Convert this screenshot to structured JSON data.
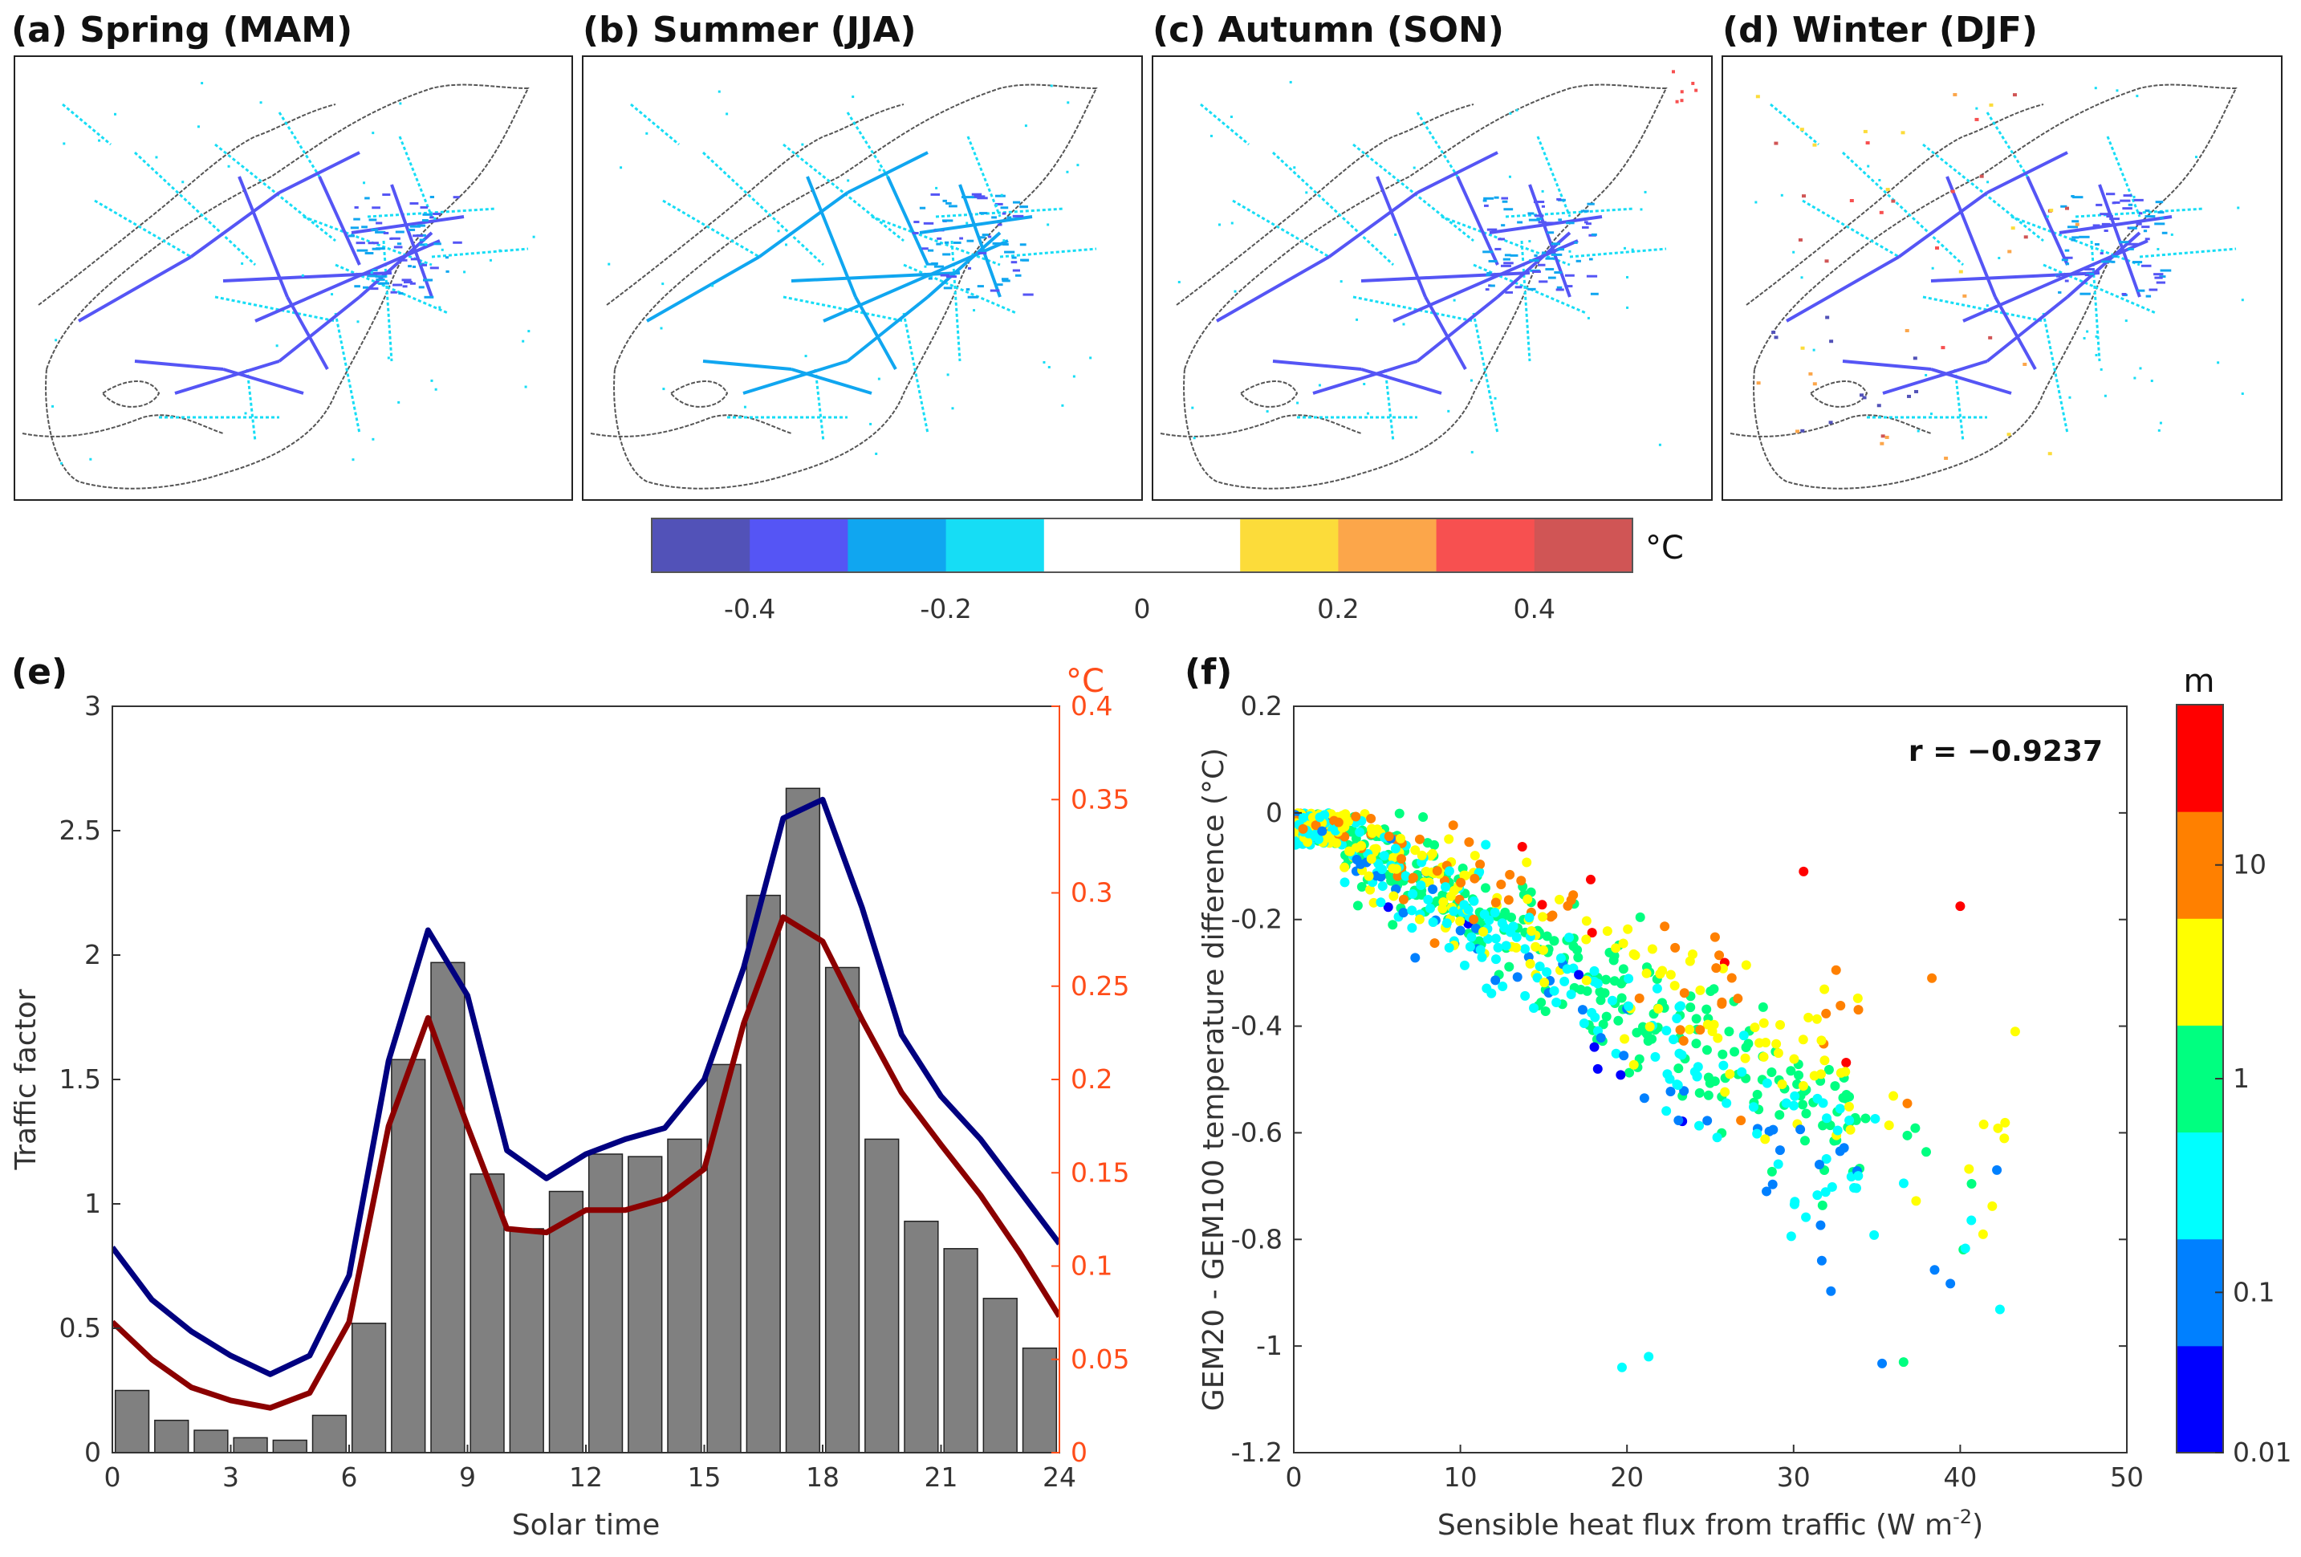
{
  "maps": {
    "panels": [
      {
        "label": "(a) Spring (MAM)"
      },
      {
        "label": "(b) Summer (JJA)"
      },
      {
        "label": "(c) Autumn (SON)"
      },
      {
        "label": "(d) Winter (DJF)"
      }
    ],
    "colorbar": {
      "unit": "°C",
      "bins": [
        {
          "from": -0.5,
          "to": -0.4,
          "color": "#5252b8"
        },
        {
          "from": -0.4,
          "to": -0.3,
          "color": "#5555f5"
        },
        {
          "from": -0.3,
          "to": -0.2,
          "color": "#10a6f0"
        },
        {
          "from": -0.2,
          "to": -0.1,
          "color": "#16ddf5"
        },
        {
          "from": -0.1,
          "to": 0.1,
          "color": "#ffffff"
        },
        {
          "from": 0.1,
          "to": 0.2,
          "color": "#fcdc3a"
        },
        {
          "from": 0.2,
          "to": 0.3,
          "color": "#fca64a"
        },
        {
          "from": 0.3,
          "to": 0.4,
          "color": "#f75050"
        },
        {
          "from": 0.4,
          "to": 0.5,
          "color": "#d05555"
        }
      ],
      "ticks": [
        "-0.4",
        "-0.2",
        "0",
        "0.2",
        "0.4"
      ],
      "tick_values": [
        -0.4,
        -0.2,
        0,
        0.2,
        0.4
      ]
    }
  },
  "chart_data": [
    {
      "id": "e",
      "type": "bar+line",
      "panel_label": "(e)",
      "xlabel": "Solar time",
      "ylabel": "Traffic factor",
      "ylabel_right": "°C",
      "xlim": [
        0,
        24
      ],
      "ylim": [
        0,
        3
      ],
      "ylim_right": [
        0,
        0.4
      ],
      "xticks": [
        "0",
        "3",
        "6",
        "9",
        "12",
        "15",
        "18",
        "21",
        "24"
      ],
      "xtick_values": [
        0,
        3,
        6,
        9,
        12,
        15,
        18,
        21,
        24
      ],
      "yticks": [
        "0",
        "0.5",
        "1",
        "1.5",
        "2",
        "2.5",
        "3"
      ],
      "ytick_values": [
        0,
        0.5,
        1,
        1.5,
        2,
        2.5,
        3
      ],
      "yticks_right": [
        "0",
        "0.05",
        "0.1",
        "0.15",
        "0.2",
        "0.25",
        "0.3",
        "0.35",
        "0.4"
      ],
      "ytick_values_right": [
        0,
        0.05,
        0.1,
        0.15,
        0.2,
        0.25,
        0.3,
        0.35,
        0.4
      ],
      "bars": {
        "hours": [
          0,
          1,
          2,
          3,
          4,
          5,
          6,
          7,
          8,
          9,
          10,
          11,
          12,
          13,
          14,
          15,
          16,
          17,
          18,
          19,
          20,
          21,
          22,
          23
        ],
        "values": [
          0.25,
          0.13,
          0.09,
          0.06,
          0.05,
          0.15,
          0.52,
          1.58,
          1.97,
          1.12,
          0.9,
          1.05,
          1.2,
          1.19,
          1.26,
          1.56,
          2.24,
          2.67,
          1.95,
          1.26,
          0.93,
          0.82,
          0.62,
          0.42
        ],
        "color": "#808080"
      },
      "series": [
        {
          "name": "blue line",
          "color": "#000080",
          "axis": "right",
          "x": [
            0,
            1,
            2,
            3,
            4,
            5,
            6,
            7,
            8,
            9,
            10,
            11,
            12,
            13,
            14,
            15,
            16,
            17,
            18,
            19,
            20,
            21,
            22,
            23,
            24
          ],
          "values": [
            0.11,
            0.082,
            0.065,
            0.052,
            0.042,
            0.052,
            0.095,
            0.21,
            0.28,
            0.245,
            0.162,
            0.147,
            0.16,
            0.168,
            0.174,
            0.2,
            0.26,
            0.34,
            0.35,
            0.292,
            0.224,
            0.191,
            0.168,
            0.14,
            0.112
          ]
        },
        {
          "name": "red line",
          "color": "#8b0000",
          "axis": "right",
          "x": [
            0,
            1,
            2,
            3,
            4,
            5,
            6,
            7,
            8,
            9,
            10,
            11,
            12,
            13,
            14,
            15,
            16,
            17,
            18,
            19,
            20,
            21,
            22,
            23,
            24
          ],
          "values": [
            0.07,
            0.05,
            0.035,
            0.028,
            0.024,
            0.032,
            0.07,
            0.175,
            0.233,
            0.175,
            0.12,
            0.118,
            0.13,
            0.13,
            0.136,
            0.152,
            0.23,
            0.287,
            0.274,
            0.232,
            0.193,
            0.165,
            0.138,
            0.107,
            0.073
          ]
        }
      ]
    },
    {
      "id": "f",
      "type": "scatter",
      "panel_label": "(f)",
      "xlabel": "Sensible heat flux from traffic (W m",
      "xlabel_sup": "-2",
      "xlabel_end": ")",
      "ylabel": "GEM20 - GEM100 temperature difference (°C)",
      "annotation": "r = −0.9237",
      "xlim": [
        0,
        50
      ],
      "ylim": [
        -1.2,
        0.2
      ],
      "xticks": [
        "0",
        "10",
        "20",
        "30",
        "40",
        "50"
      ],
      "xtick_values": [
        0,
        10,
        20,
        30,
        40,
        50
      ],
      "yticks": [
        "-1.2",
        "-1",
        "-0.8",
        "-0.6",
        "-0.4",
        "-0.2",
        "0",
        "0.2"
      ],
      "ytick_values": [
        -1.2,
        -1,
        -0.8,
        -0.6,
        -0.4,
        -0.2,
        0,
        0.2
      ],
      "colorbar": {
        "unit": "m",
        "scale": "log",
        "ticks": [
          "0.01",
          "0.1",
          "1",
          "10"
        ],
        "colors": [
          "#0000ff",
          "#0080ff",
          "#00ffff",
          "#00ff80",
          "#ffff00",
          "#ff8000",
          "#ff0000"
        ]
      },
      "point_count": 900,
      "notable_points": [
        {
          "x": 19.7,
          "y": -1.04,
          "c": "#00ffff"
        },
        {
          "x": 21.3,
          "y": -1.02,
          "c": "#00ffff"
        },
        {
          "x": 36.6,
          "y": -1.03,
          "c": "#00ff80"
        },
        {
          "x": 42.2,
          "y": -0.67,
          "c": "#0080ff"
        },
        {
          "x": 40.0,
          "y": -0.175,
          "c": "#ff0000"
        },
        {
          "x": 43.3,
          "y": -0.41,
          "c": "#ffff00"
        },
        {
          "x": 30.6,
          "y": -0.11,
          "c": "#ff0000"
        },
        {
          "x": 38.3,
          "y": -0.31,
          "c": "#ff8000"
        }
      ]
    }
  ]
}
